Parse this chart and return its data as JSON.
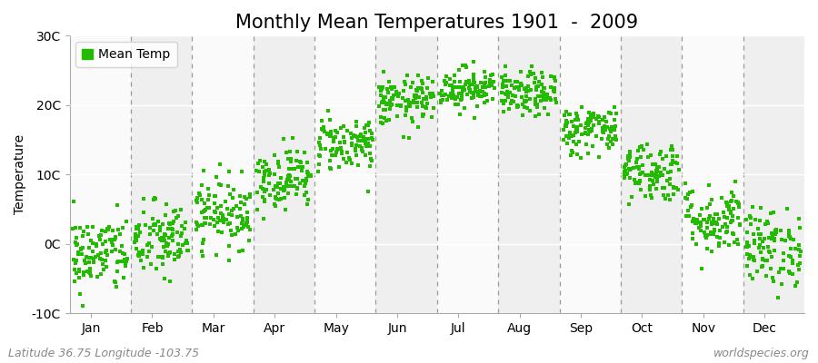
{
  "title": "Monthly Mean Temperatures 1901  -  2009",
  "ylabel": "Temperature",
  "ylim": [
    -10,
    30
  ],
  "yticks": [
    -10,
    0,
    10,
    20,
    30
  ],
  "ytick_labels": [
    "-10C",
    "0C",
    "10C",
    "20C",
    "30C"
  ],
  "months": [
    "Jan",
    "Feb",
    "Mar",
    "Apr",
    "May",
    "Jun",
    "Jul",
    "Aug",
    "Sep",
    "Oct",
    "Nov",
    "Dec"
  ],
  "month_means": [
    -1.5,
    0.5,
    4.5,
    9.5,
    14.5,
    20.5,
    22.5,
    21.5,
    16.5,
    10.5,
    3.5,
    -0.5
  ],
  "month_stds": [
    2.8,
    2.8,
    2.5,
    2.2,
    2.0,
    1.8,
    1.5,
    1.6,
    1.8,
    2.2,
    2.5,
    2.8
  ],
  "n_years": 109,
  "dot_color": "#22BB00",
  "dot_size": 8,
  "background_color_odd": "#EFEFEF",
  "background_color_even": "#FAFAFA",
  "fig_background": "#FFFFFF",
  "title_fontsize": 15,
  "axis_fontsize": 10,
  "tick_fontsize": 10,
  "legend_label": "Mean Temp",
  "footer_left": "Latitude 36.75 Longitude -103.75",
  "footer_right": "worldspecies.org",
  "footer_fontsize": 9,
  "dashed_line_color": "#999999",
  "seed": 42
}
